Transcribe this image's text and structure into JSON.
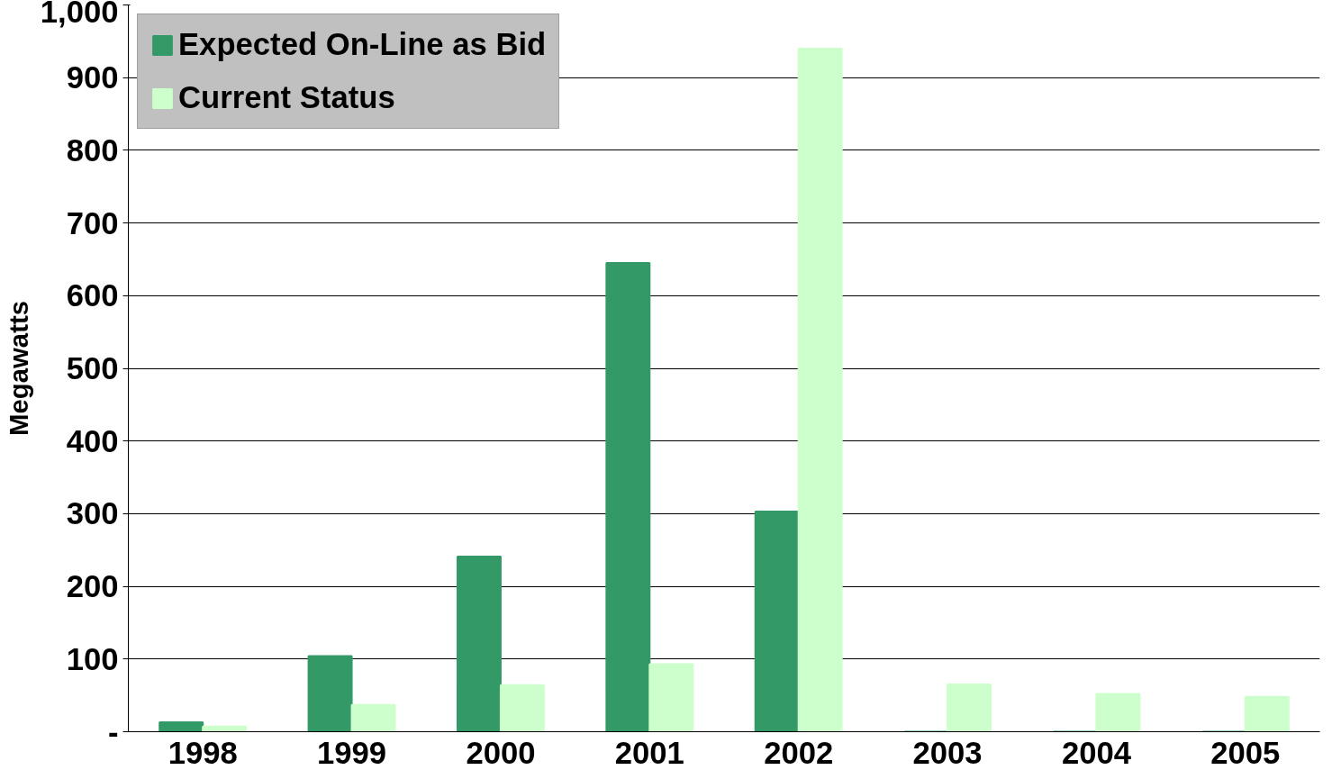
{
  "chart_data": {
    "type": "bar",
    "ylabel": "Megawatts",
    "categories": [
      "1998",
      "1999",
      "2000",
      "2001",
      "2002",
      "2003",
      "2004",
      "2005"
    ],
    "series": [
      {
        "name": "Expected On-Line as Bid",
        "color": "#339966",
        "values": [
          13,
          104,
          241,
          645,
          303,
          0,
          0,
          0
        ]
      },
      {
        "name": "Current Status",
        "color": "#ccffcc",
        "values": [
          7,
          37,
          64,
          93,
          940,
          65,
          52,
          48
        ]
      }
    ],
    "ylim": [
      0,
      1000
    ],
    "yticks": [
      {
        "value": 0,
        "label": "-"
      },
      100,
      200,
      300,
      400,
      500,
      600,
      700,
      800,
      900,
      {
        "value": 1000,
        "label": "1,000"
      }
    ],
    "grid": "y",
    "legend": "top left"
  }
}
